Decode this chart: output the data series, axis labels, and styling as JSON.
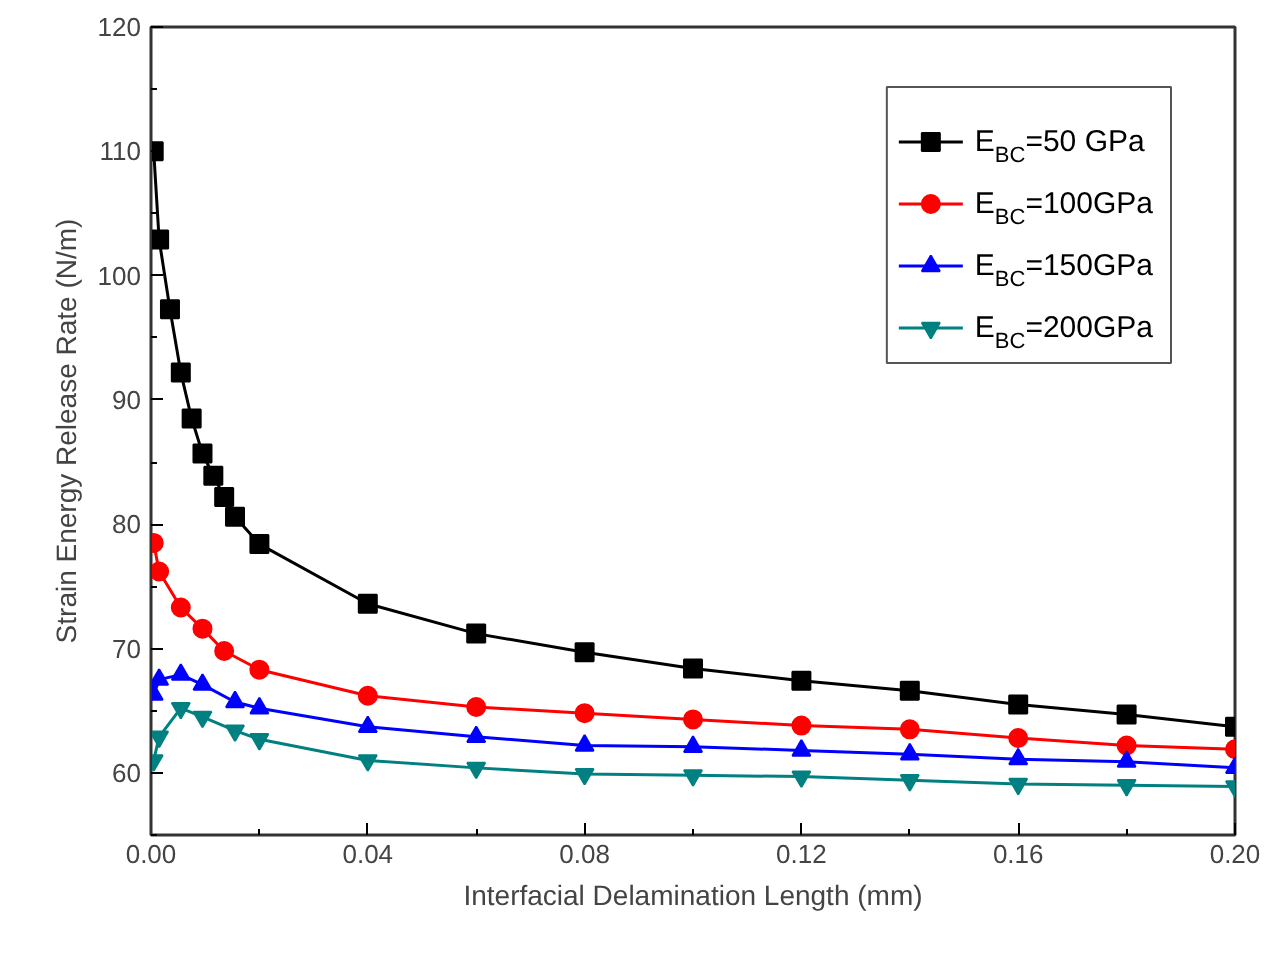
{
  "chart_data": {
    "type": "line",
    "xlabel": "Interfacial Delamination Length (mm)",
    "ylabel": "Strain Energy Release Rate (N/m)",
    "xlim": [
      0,
      0.2
    ],
    "ylim": [
      55,
      120
    ],
    "xticks": [
      {
        "value": 0,
        "label": "0.00"
      },
      {
        "value": 0.02,
        "label": null
      },
      {
        "value": 0.04,
        "label": "0.04"
      },
      {
        "value": 0.06,
        "label": null
      },
      {
        "value": 0.08,
        "label": "0.08"
      },
      {
        "value": 0.1,
        "label": null
      },
      {
        "value": 0.12,
        "label": "0.12"
      },
      {
        "value": 0.14,
        "label": null
      },
      {
        "value": 0.16,
        "label": "0.16"
      },
      {
        "value": 0.18,
        "label": null
      },
      {
        "value": 0.2,
        "label": "0.20"
      }
    ],
    "yticks": [
      {
        "value": 55,
        "label": null
      },
      60,
      {
        "value": 65,
        "label": null
      },
      70,
      {
        "value": 75,
        "label": null
      },
      80,
      {
        "value": 85,
        "label": null
      },
      90,
      {
        "value": 95,
        "label": null
      },
      100,
      {
        "value": 105,
        "label": null
      },
      110,
      {
        "value": 115,
        "label": null
      },
      120
    ],
    "grid": false,
    "legend": "top right",
    "line_style": "solid",
    "series": [
      {
        "name": "E$_{BC}$=50  GPa",
        "color": "#000000",
        "marker": "square",
        "x": [
          0.0005,
          0.0015,
          0.0035,
          0.0055,
          0.0075,
          0.0095,
          0.0115,
          0.0135,
          0.0155,
          0.02,
          0.04,
          0.06,
          0.08,
          0.1,
          0.12,
          0.14,
          0.16,
          0.18,
          0.2
        ],
        "values": [
          110,
          102.9,
          97.3,
          92.2,
          88.5,
          85.7,
          83.9,
          82.2,
          80.6,
          78.4,
          73.6,
          71.2,
          69.7,
          68.4,
          67.4,
          66.6,
          65.5,
          64.7,
          63.7
        ]
      },
      {
        "name": "E$_{BC}$=100GPa",
        "color": "#ff0000",
        "marker": "circle",
        "x": [
          0.0005,
          0.0015,
          0.0055,
          0.0095,
          0.0135,
          0.02,
          0.04,
          0.06,
          0.08,
          0.1,
          0.12,
          0.14,
          0.16,
          0.18,
          0.2
        ],
        "values": [
          78.5,
          76.2,
          73.3,
          71.6,
          69.8,
          68.3,
          66.2,
          65.3,
          64.8,
          64.3,
          63.8,
          63.5,
          62.8,
          62.2,
          61.9
        ]
      },
      {
        "name": "E$_{BC}$=150GPa",
        "color": "#0000ff",
        "marker": "triangle",
        "x": [
          0.0005,
          0.0015,
          0.0055,
          0.0095,
          0.0155,
          0.02,
          0.04,
          0.06,
          0.08,
          0.1,
          0.12,
          0.14,
          0.16,
          0.18,
          0.2
        ],
        "values": [
          66.3,
          67.5,
          67.9,
          67.1,
          65.7,
          65.2,
          63.7,
          62.9,
          62.2,
          62.1,
          61.8,
          61.5,
          61.1,
          60.9,
          60.4
        ]
      },
      {
        "name": "E$_{BC}$=200GPa",
        "color": "#008080",
        "marker": "triangle-down",
        "x": [
          0.0005,
          0.0015,
          0.0055,
          0.0095,
          0.0155,
          0.02,
          0.04,
          0.06,
          0.08,
          0.1,
          0.12,
          0.14,
          0.16,
          0.18,
          0.2
        ],
        "values": [
          61.0,
          62.9,
          65.2,
          64.5,
          63.4,
          62.7,
          61.0,
          60.4,
          59.9,
          59.8,
          59.7,
          59.4,
          59.1,
          59.0,
          58.9
        ]
      }
    ]
  }
}
